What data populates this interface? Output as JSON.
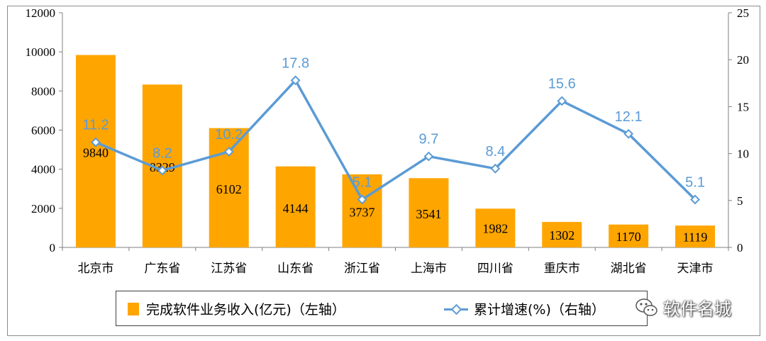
{
  "chart_data": {
    "type": "bar",
    "categories": [
      "北京市",
      "广东省",
      "江苏省",
      "山东省",
      "浙江省",
      "上海市",
      "四川省",
      "重庆市",
      "湖北省",
      "天津市"
    ],
    "series": [
      {
        "name": "完成软件业务收入(亿元)（左轴）",
        "type": "bar",
        "axis": "left",
        "values": [
          9840,
          8329,
          6102,
          4144,
          3737,
          3541,
          1982,
          1302,
          1170,
          1119
        ],
        "labels": [
          "9840",
          "8329",
          "6102",
          "4144",
          "3737",
          "3541",
          "1982",
          "1302",
          "1170",
          "1119"
        ]
      },
      {
        "name": "累计增速(%)（右轴）",
        "type": "line",
        "axis": "right",
        "values": [
          11.2,
          8.2,
          10.2,
          17.8,
          5.1,
          9.7,
          8.4,
          15.6,
          12.1,
          5.1
        ],
        "labels": [
          "11.2",
          "8.2",
          "10.2",
          "17.8",
          "5.1",
          "9.7",
          "8.4",
          "15.6",
          "12.1",
          "5.1"
        ]
      }
    ],
    "y_left": {
      "range": [
        0,
        12000
      ],
      "ticks": [
        "0",
        "2000",
        "4000",
        "6000",
        "8000",
        "10000",
        "12000"
      ]
    },
    "y_right": {
      "range": [
        0,
        25
      ],
      "ticks": [
        "0",
        "5",
        "10",
        "15",
        "20",
        "25"
      ]
    },
    "legend_position": "bottom",
    "colors": {
      "bar": "#ffa500",
      "line": "#5b9bd5"
    },
    "grid": false
  },
  "legend": {
    "bar_label": "完成软件业务收入(亿元)（左轴）",
    "line_label": "累计增速(%)（右轴）"
  },
  "watermark": {
    "text": "软件名城",
    "icon": "wechat-icon"
  }
}
